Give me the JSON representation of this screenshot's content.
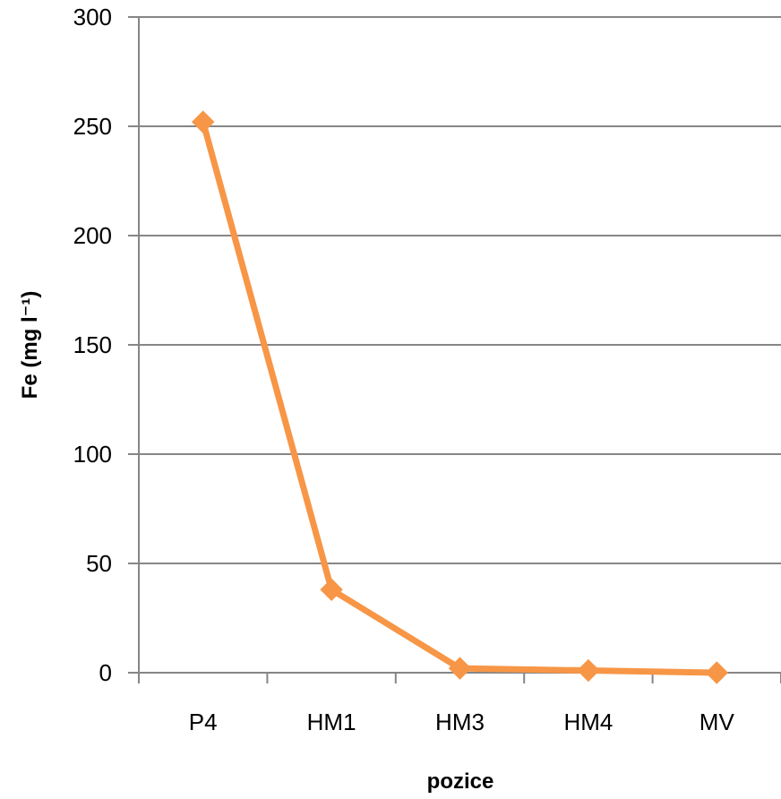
{
  "chart_data": {
    "type": "line",
    "title": "",
    "xlabel": "pozice",
    "ylabel": "Fe (mg l⁻¹)",
    "categories": [
      "P4",
      "HM1",
      "HM3",
      "HM4",
      "MV"
    ],
    "series": [
      {
        "name": "",
        "values": [
          252,
          38,
          2,
          1,
          0
        ],
        "color": "#F79646",
        "marker": "diamond"
      }
    ],
    "ylim": [
      0,
      300
    ],
    "yticks": [
      0,
      50,
      100,
      150,
      200,
      250,
      300
    ],
    "grid": true,
    "legend": "none"
  }
}
